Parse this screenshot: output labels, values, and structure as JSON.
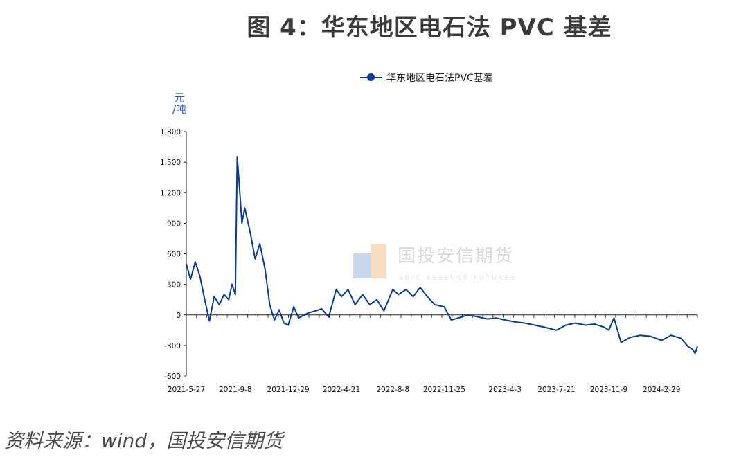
{
  "figure": {
    "title": "图 4：华东地区电石法 PVC 基差",
    "source": "资料来源：wind，国投安信期货"
  },
  "watermark": {
    "name_cn": "国投安信期货",
    "name_en": "SDIC ESSENCE FUTURES"
  },
  "colors": {
    "series": "#0b3a8f",
    "unit": "#2f56c6",
    "title": "#3b3b3b"
  },
  "chart_data": {
    "type": "line",
    "title": "",
    "ylabel": "元/吨",
    "xlabel": "",
    "ylim": [
      -600,
      1800
    ],
    "yticks": [
      -600,
      -300,
      0,
      300,
      600,
      900,
      1200,
      1500,
      1800
    ],
    "ytick_labels": [
      "-600",
      "-300",
      "0",
      "300",
      "600",
      "900",
      "1,200",
      "1,500",
      "1,800"
    ],
    "xtick_labels": [
      "2021-5-27",
      "2021-9-8",
      "2021-12-29",
      "2022-4-21",
      "2022-8-8",
      "2022-11-25",
      "2023-4-3",
      "2023-7-21",
      "2023-11-9",
      "2024-2-29"
    ],
    "legend": "top-center",
    "grid": false,
    "series": [
      {
        "name": "华东地区电石法PVC基差",
        "x": [
          "2021-5-27",
          "2021-6-5",
          "2021-6-15",
          "2021-6-25",
          "2021-7-5",
          "2021-7-15",
          "2021-7-25",
          "2021-8-5",
          "2021-8-15",
          "2021-8-25",
          "2021-9-1",
          "2021-9-8",
          "2021-9-12",
          "2021-9-16",
          "2021-9-22",
          "2021-9-28",
          "2021-10-10",
          "2021-10-20",
          "2021-10-30",
          "2021-11-10",
          "2021-11-20",
          "2021-11-30",
          "2021-12-10",
          "2021-12-20",
          "2021-12-29",
          "2022-1-10",
          "2022-1-20",
          "2022-2-10",
          "2022-2-25",
          "2022-3-10",
          "2022-3-25",
          "2022-4-10",
          "2022-4-21",
          "2022-5-5",
          "2022-5-20",
          "2022-6-5",
          "2022-6-20",
          "2022-7-5",
          "2022-7-20",
          "2022-8-8",
          "2022-8-20",
          "2022-9-5",
          "2022-9-20",
          "2022-10-5",
          "2022-10-20",
          "2022-11-5",
          "2022-11-25",
          "2022-12-10",
          "2022-12-25",
          "2023-1-15",
          "2023-2-5",
          "2023-2-25",
          "2023-3-15",
          "2023-4-3",
          "2023-4-25",
          "2023-5-15",
          "2023-6-5",
          "2023-6-25",
          "2023-7-21",
          "2023-8-10",
          "2023-8-30",
          "2023-9-20",
          "2023-10-10",
          "2023-10-30",
          "2023-11-9",
          "2023-11-20",
          "2023-12-5",
          "2023-12-25",
          "2024-1-15",
          "2024-2-5",
          "2024-2-29",
          "2024-3-20",
          "2024-4-10",
          "2024-4-25",
          "2024-5-5",
          "2024-5-10",
          "2024-5-15"
        ],
        "values": [
          500,
          350,
          520,
          380,
          150,
          -60,
          180,
          100,
          200,
          150,
          300,
          200,
          1550,
          1300,
          900,
          1050,
          800,
          550,
          700,
          450,
          100,
          -50,
          50,
          -80,
          -100,
          80,
          -30,
          20,
          40,
          60,
          -20,
          250,
          180,
          250,
          100,
          200,
          100,
          150,
          40,
          250,
          200,
          250,
          180,
          270,
          180,
          100,
          80,
          -50,
          -30,
          0,
          -20,
          -40,
          -30,
          -50,
          -70,
          -80,
          -100,
          -120,
          -150,
          -100,
          -80,
          -100,
          -90,
          -120,
          -150,
          -30,
          -270,
          -220,
          -200,
          -210,
          -250,
          -200,
          -230,
          -310,
          -340,
          -380,
          -310
        ]
      }
    ]
  }
}
